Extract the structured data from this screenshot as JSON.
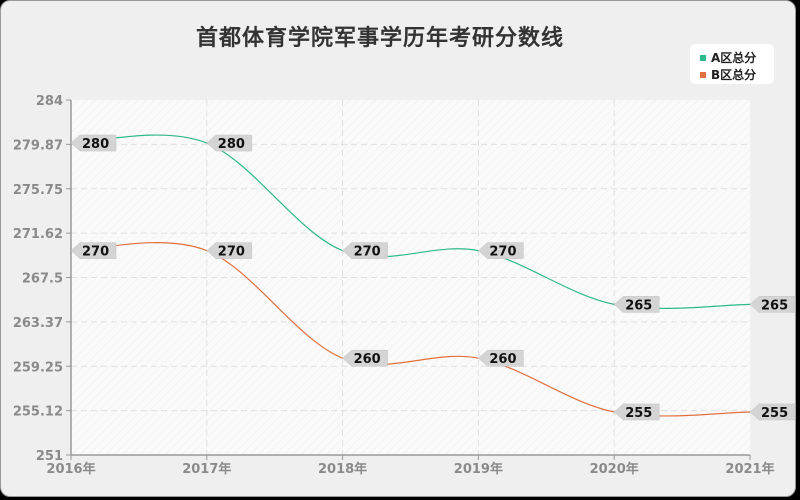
{
  "title": "首都体育学院军事学历年考研分数线",
  "legend": [
    {
      "label": "A区总分",
      "color": "#2fb88a"
    },
    {
      "label": "B区总分",
      "color": "#e0703f"
    }
  ],
  "chart_data": {
    "type": "line",
    "title": "首都体育学院军事学历年考研分数线",
    "xlabel": "",
    "ylabel": "",
    "categories": [
      "2016年",
      "2017年",
      "2018年",
      "2019年",
      "2020年",
      "2021年"
    ],
    "series": [
      {
        "name": "A区总分",
        "color": "#2fb88a",
        "values": [
          280,
          280,
          270,
          270,
          265,
          265
        ]
      },
      {
        "name": "B区总分",
        "color": "#e0703f",
        "values": [
          270,
          270,
          260,
          260,
          255,
          255
        ]
      }
    ],
    "yticks": [
      "284",
      "279.87",
      "275.75",
      "271.62",
      "267.5",
      "263.37",
      "259.25",
      "255.12",
      "251"
    ],
    "ylim": [
      251,
      284
    ],
    "grid": true,
    "legend_position": "top-right",
    "smooth": true
  }
}
